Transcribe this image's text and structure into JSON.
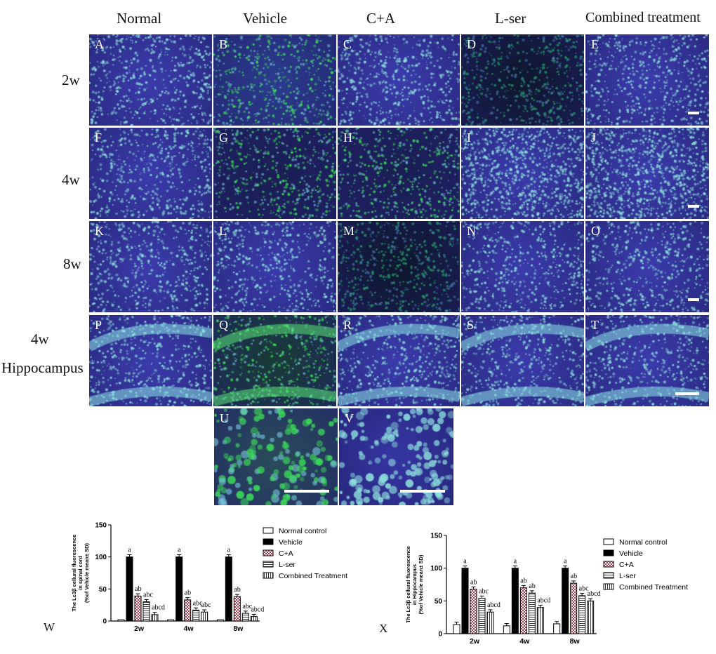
{
  "columns": [
    "Normal",
    "Vehicle",
    "C+A",
    "L-ser",
    "Combined treatment"
  ],
  "rows": [
    "2w",
    "4w",
    "8w",
    "4w",
    "Hippocampus"
  ],
  "panels": [
    {
      "label": "A",
      "tone": "dark-blue"
    },
    {
      "label": "B",
      "tone": "green-sparse"
    },
    {
      "label": "C",
      "tone": "blue-dots"
    },
    {
      "label": "D",
      "tone": "dark"
    },
    {
      "label": "E",
      "tone": "blue-dots"
    },
    {
      "label": "F",
      "tone": "blue-dots"
    },
    {
      "label": "G",
      "tone": "dark-green"
    },
    {
      "label": "H",
      "tone": "dark-green"
    },
    {
      "label": "I",
      "tone": "blue-dense"
    },
    {
      "label": "J",
      "tone": "blue-dense"
    },
    {
      "label": "K",
      "tone": "blue-dots"
    },
    {
      "label": "L",
      "tone": "blue-dots"
    },
    {
      "label": "M",
      "tone": "dark"
    },
    {
      "label": "N",
      "tone": "blue-dots"
    },
    {
      "label": "O",
      "tone": "blue-dots"
    },
    {
      "label": "P",
      "tone": "hippo"
    },
    {
      "label": "Q",
      "tone": "hippo-green"
    },
    {
      "label": "R",
      "tone": "hippo"
    },
    {
      "label": "S",
      "tone": "hippo"
    },
    {
      "label": "T",
      "tone": "hippo"
    },
    {
      "label": "U",
      "tone": "zoom-green"
    },
    {
      "label": "V",
      "tone": "zoom-blue"
    }
  ],
  "legend": [
    "Normal control",
    "Vehicle",
    "C+A",
    "L-ser",
    "Combined Treatment"
  ],
  "chart_data": [
    {
      "type": "bar",
      "panel": "W",
      "ylabel": "The Lc3β cellural fluorescence in spinal cord (%of Vehicle mean± SD)",
      "categories": [
        "2w",
        "4w",
        "8w"
      ],
      "ylim": [
        0,
        150
      ],
      "yticks": [
        0,
        50,
        100,
        150
      ],
      "series": [
        {
          "name": "Normal control",
          "values": [
            2,
            2,
            2
          ],
          "labels": [
            "",
            "",
            ""
          ]
        },
        {
          "name": "Vehicle",
          "values": [
            100,
            100,
            100
          ],
          "labels": [
            "a",
            "a",
            "a"
          ]
        },
        {
          "name": "C+A",
          "values": [
            39,
            33,
            38
          ],
          "labels": [
            "ab",
            "ab",
            "ab"
          ]
        },
        {
          "name": "L-ser",
          "values": [
            30,
            17,
            12
          ],
          "labels": [
            "abc",
            "abc",
            "abc"
          ]
        },
        {
          "name": "Combined Treatment",
          "values": [
            10,
            14,
            7
          ],
          "labels": [
            "abcd",
            "abc",
            "abcd"
          ]
        }
      ]
    },
    {
      "type": "bar",
      "panel": "X",
      "ylabel": "The Lc3β cellural fluorescence in Hippocampus (%of Vehicle mean± SD)",
      "categories": [
        "2w",
        "4w",
        "8w"
      ],
      "ylim": [
        0,
        150
      ],
      "yticks": [
        0,
        50,
        100,
        150
      ],
      "series": [
        {
          "name": "Normal control",
          "values": [
            14,
            12,
            15
          ],
          "labels": [
            "",
            "",
            ""
          ]
        },
        {
          "name": "Vehicle",
          "values": [
            100,
            100,
            100
          ],
          "labels": [
            "a",
            "a",
            "a"
          ]
        },
        {
          "name": "C+A",
          "values": [
            68,
            70,
            77
          ],
          "labels": [
            "ab",
            "ab",
            "ab"
          ]
        },
        {
          "name": "L-ser",
          "values": [
            54,
            62,
            58
          ],
          "labels": [
            "abc",
            "ab",
            "abc"
          ]
        },
        {
          "name": "Combined Treatment",
          "values": [
            33,
            40,
            50
          ],
          "labels": [
            "abcd",
            "abcd",
            "abcd"
          ]
        }
      ]
    }
  ]
}
